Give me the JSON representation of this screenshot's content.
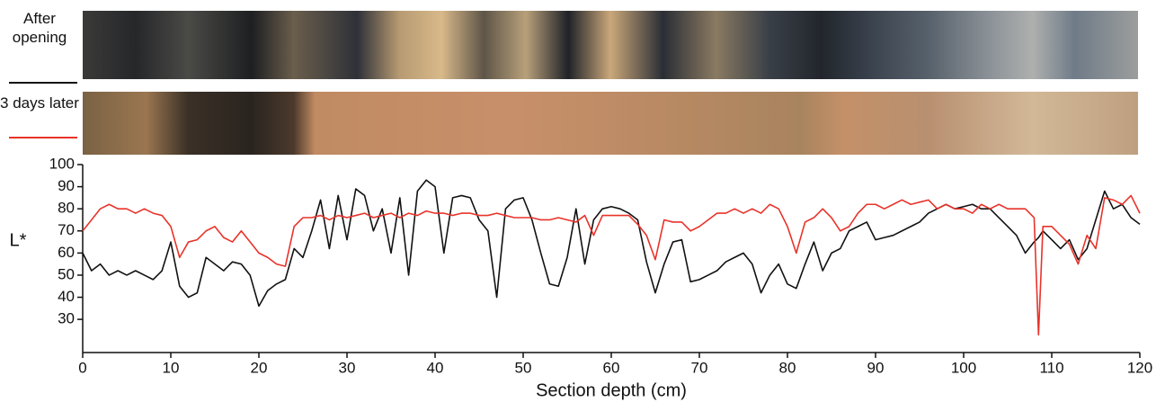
{
  "chart_data": {
    "type": "line",
    "x_label": "Section depth (cm)",
    "y_label": "L*",
    "x": [
      0,
      1,
      2,
      3,
      4,
      5,
      6,
      7,
      8,
      9,
      10,
      11,
      12,
      13,
      14,
      15,
      16,
      17,
      18,
      19,
      20,
      21,
      22,
      23,
      24,
      25,
      26,
      27,
      28,
      29,
      30,
      31,
      32,
      33,
      34,
      35,
      36,
      37,
      38,
      39,
      40,
      41,
      42,
      43,
      44,
      45,
      46,
      47,
      48,
      49,
      50,
      51,
      52,
      53,
      54,
      55,
      56,
      57,
      58,
      59,
      60,
      61,
      62,
      63,
      64,
      65,
      66,
      67,
      68,
      69,
      70,
      71,
      72,
      73,
      74,
      75,
      76,
      77,
      78,
      79,
      80,
      81,
      82,
      83,
      84,
      85,
      86,
      87,
      88,
      89,
      90,
      91,
      92,
      93,
      94,
      95,
      96,
      97,
      98,
      99,
      100,
      101,
      102,
      103,
      104,
      105,
      106,
      107,
      108,
      108.5,
      109,
      110,
      111,
      112,
      113,
      114,
      115,
      116,
      117,
      118,
      119,
      120
    ],
    "series": [
      {
        "name": "After opening",
        "color": "#111111",
        "values": [
          60,
          52,
          55,
          50,
          52,
          50,
          52,
          50,
          48,
          52,
          65,
          45,
          40,
          42,
          58,
          55,
          52,
          56,
          55,
          50,
          36,
          43,
          46,
          48,
          62,
          58,
          70,
          84,
          62,
          86,
          66,
          89,
          86,
          70,
          80,
          60,
          85,
          50,
          88,
          93,
          90,
          60,
          85,
          86,
          85,
          75,
          70,
          40,
          80,
          84,
          85,
          75,
          60,
          46,
          45,
          58,
          80,
          55,
          75,
          80,
          81,
          80,
          78,
          75,
          56,
          42,
          55,
          65,
          66,
          47,
          48,
          50,
          52,
          56,
          58,
          60,
          55,
          42,
          50,
          55,
          46,
          44,
          55,
          65,
          52,
          60,
          62,
          70,
          72,
          74,
          66,
          67,
          68,
          70,
          72,
          74,
          78,
          80,
          82,
          80,
          81,
          82,
          80,
          80,
          76,
          72,
          68,
          60,
          65,
          67,
          70,
          66,
          62,
          66,
          57,
          62,
          75,
          88,
          80,
          82,
          76,
          73
        ]
      },
      {
        "name": "3 days later",
        "color": "#e8332a",
        "values": [
          70,
          75,
          80,
          82,
          80,
          80,
          78,
          80,
          78,
          77,
          72,
          58,
          65,
          66,
          70,
          72,
          67,
          65,
          70,
          65,
          60,
          58,
          55,
          54,
          72,
          76,
          76,
          77,
          75,
          77,
          76,
          77,
          78,
          76,
          77,
          78,
          76,
          78,
          77,
          79,
          78,
          78,
          77,
          78,
          78,
          77,
          77,
          78,
          77,
          76,
          76,
          76,
          75,
          75,
          76,
          75,
          74,
          77,
          68,
          77,
          77,
          77,
          77,
          73,
          68,
          57,
          75,
          74,
          74,
          70,
          72,
          75,
          78,
          78,
          80,
          78,
          80,
          78,
          82,
          80,
          72,
          60,
          74,
          76,
          80,
          76,
          70,
          72,
          78,
          82,
          82,
          80,
          82,
          84,
          82,
          83,
          84,
          80,
          82,
          80,
          80,
          78,
          82,
          80,
          82,
          80,
          80,
          80,
          76,
          23,
          72,
          72,
          68,
          64,
          55,
          68,
          62,
          85,
          84,
          82,
          86,
          78
        ]
      }
    ],
    "xlim": [
      0,
      120
    ],
    "ylim": [
      15,
      100
    ],
    "xticks": [
      0,
      10,
      20,
      30,
      40,
      50,
      60,
      70,
      80,
      90,
      100,
      110,
      120
    ],
    "yticks": [
      30,
      40,
      50,
      60,
      70,
      80,
      90,
      100
    ]
  }
}
